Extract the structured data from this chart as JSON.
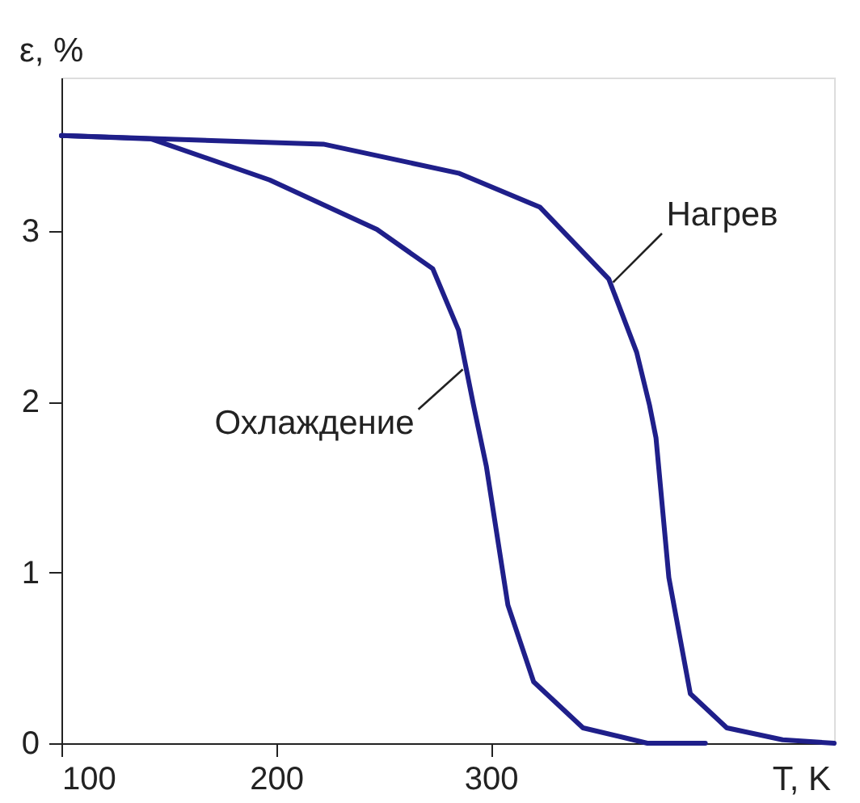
{
  "chart_data": {
    "type": "line",
    "xlabel": "T, K",
    "ylabel": "ε, %",
    "xlim": [
      100,
      460
    ],
    "ylim": [
      0,
      3.9
    ],
    "xticks": [
      100,
      200,
      300
    ],
    "yticks": [
      0,
      1,
      2,
      3
    ],
    "grid": false,
    "legend": false,
    "marker": "none",
    "line_style": "solid",
    "series": [
      {
        "color": "#1f1f8a",
        "x": [
          100,
          222,
          285,
          323,
          355,
          368,
          374,
          377,
          383,
          393,
          410,
          436,
          460
        ],
        "values": [
          3.56,
          3.51,
          3.34,
          3.14,
          2.72,
          2.29,
          1.98,
          1.79,
          0.97,
          0.29,
          0.09,
          0.02,
          0
        ]
      },
      {
        "color": "#1f1f8a",
        "x": [
          100,
          142,
          197,
          247,
          273,
          285,
          292,
          298,
          308,
          320,
          343,
          373,
          400
        ],
        "values": [
          3.56,
          3.54,
          3.3,
          3.01,
          2.78,
          2.42,
          1.98,
          1.62,
          0.81,
          0.36,
          0.09,
          0,
          0
        ]
      }
    ],
    "annotations": [
      {
        "text": "Нагрев",
        "x": 357,
        "y": 2.7
      },
      {
        "text": "Охлаждение",
        "x": 287,
        "y": 2.19
      }
    ]
  }
}
